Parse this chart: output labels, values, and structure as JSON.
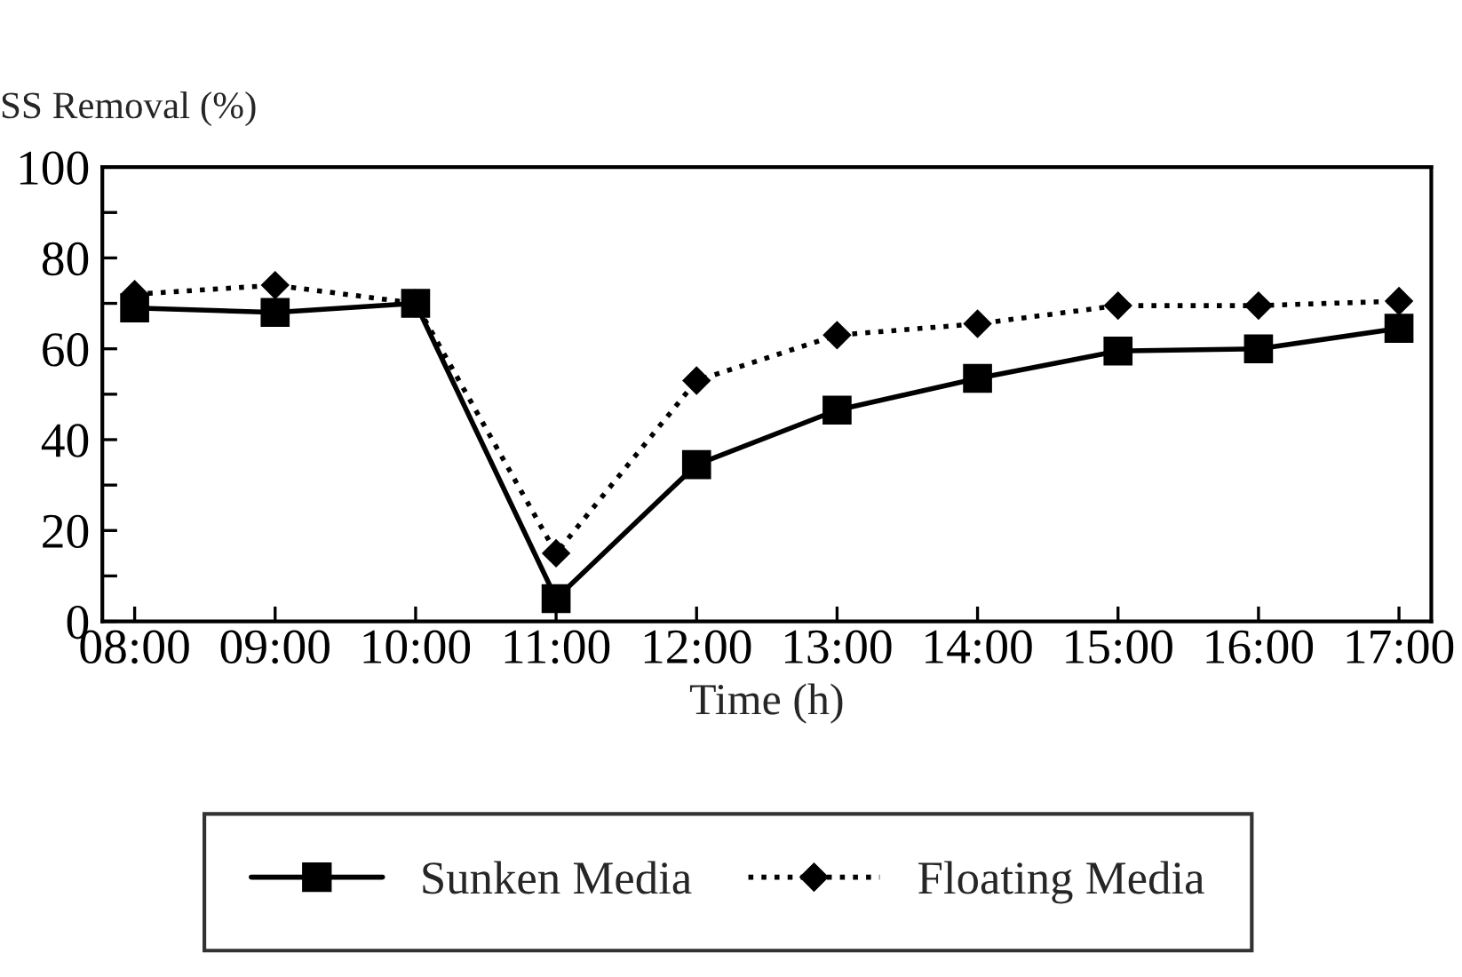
{
  "chart_data": {
    "type": "line",
    "ylabel": "SS Removal (%)",
    "xlabel": "Time (h)",
    "categories": [
      "08:00",
      "09:00",
      "10:00",
      "11:00",
      "12:00",
      "13:00",
      "14:00",
      "15:00",
      "16:00",
      "17:00"
    ],
    "series": [
      {
        "name": "Sunken Media",
        "color": "#000000",
        "marker": "square",
        "line_style": "solid",
        "values": [
          69,
          68,
          70,
          5,
          34.5,
          46.5,
          53.5,
          59.5,
          60,
          64.5
        ]
      },
      {
        "name": "Floating Media",
        "color": "#000000",
        "marker": "diamond",
        "line_style": "dotted",
        "values": [
          72,
          74,
          70,
          15,
          53,
          63,
          65.5,
          69.5,
          69.5,
          70.5
        ]
      }
    ],
    "ylim": [
      0,
      100
    ],
    "yticks": [
      0,
      {
        "value": 10,
        "label": null
      },
      20,
      {
        "value": 30,
        "label": null
      },
      40,
      {
        "value": 50,
        "label": null
      },
      60,
      {
        "value": 70,
        "label": null
      },
      80,
      {
        "value": 90,
        "label": null
      },
      100
    ],
    "grid": false,
    "legend": "bottom"
  }
}
